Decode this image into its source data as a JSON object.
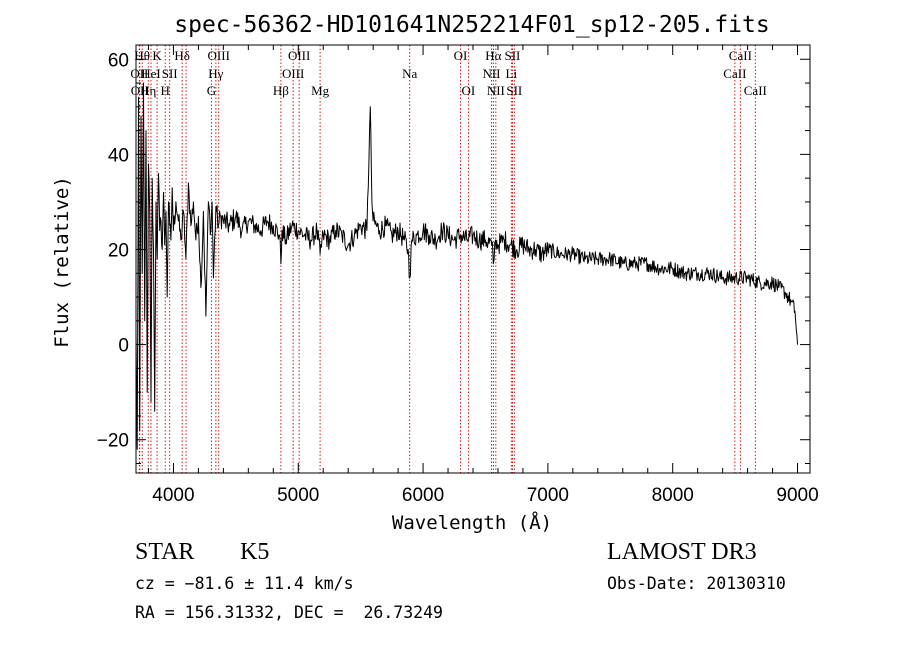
{
  "chart_data": {
    "type": "line",
    "title": "spec-56362-HD101641N252214F01_sp12-205.fits",
    "xlabel": "Wavelength (Å)",
    "ylabel": "Flux (relative)",
    "xlim": [
      3700,
      9100
    ],
    "ylim": [
      -27,
      63
    ],
    "xticks": [
      4000,
      5000,
      6000,
      7000,
      8000,
      9000
    ],
    "yticks": [
      -20,
      0,
      20,
      40,
      60
    ],
    "xtick_labels": [
      "4000",
      "5000",
      "6000",
      "7000",
      "8000",
      "9000"
    ],
    "ytick_labels": [
      "−20",
      "0",
      "20",
      "40",
      "60"
    ],
    "series": [
      {
        "name": "flux",
        "color": "#000000",
        "x": [
          3700,
          3710,
          3720,
          3730,
          3740,
          3750,
          3760,
          3770,
          3780,
          3790,
          3800,
          3810,
          3820,
          3830,
          3840,
          3850,
          3860,
          3870,
          3880,
          3890,
          3900,
          3910,
          3920,
          3930,
          3940,
          3950,
          3960,
          3970,
          3980,
          3990,
          4000,
          4020,
          4040,
          4060,
          4080,
          4100,
          4120,
          4140,
          4160,
          4180,
          4200,
          4220,
          4240,
          4260,
          4280,
          4300,
          4310,
          4320,
          4340,
          4360,
          4380,
          4400,
          4450,
          4500,
          4550,
          4600,
          4650,
          4700,
          4750,
          4800,
          4850,
          4861,
          4870,
          4900,
          4950,
          5000,
          5050,
          5100,
          5150,
          5175,
          5200,
          5250,
          5300,
          5350,
          5400,
          5450,
          5500,
          5550,
          5577,
          5590,
          5600,
          5650,
          5700,
          5750,
          5800,
          5850,
          5880,
          5893,
          5910,
          5950,
          6000,
          6050,
          6100,
          6150,
          6200,
          6250,
          6300,
          6350,
          6400,
          6450,
          6500,
          6550,
          6563,
          6580,
          6600,
          6650,
          6700,
          6750,
          6800,
          6850,
          6900,
          6950,
          7000,
          7100,
          7200,
          7300,
          7400,
          7500,
          7600,
          7700,
          7800,
          7900,
          8000,
          8100,
          8200,
          8300,
          8400,
          8500,
          8600,
          8700,
          8800,
          8850,
          8900,
          8950,
          8980,
          9000
        ],
        "y": [
          2,
          -22,
          52,
          -18,
          48,
          15,
          55,
          5,
          45,
          -10,
          38,
          28,
          -12,
          35,
          20,
          -14,
          30,
          18,
          36,
          24,
          26,
          20,
          32,
          21,
          28,
          10,
          30,
          25,
          22,
          33,
          24,
          30,
          26,
          22,
          28,
          18,
          34,
          25,
          30,
          22,
          27,
          12,
          28,
          6,
          30,
          24,
          30,
          14,
          29,
          25,
          27,
          26,
          25,
          27,
          24,
          26,
          25,
          24,
          26,
          25,
          23,
          17,
          24,
          22,
          25,
          24,
          23,
          22,
          24,
          19,
          23,
          22,
          24,
          23,
          21,
          23,
          25,
          24,
          50,
          30,
          26,
          24,
          25,
          23,
          24,
          22,
          20,
          14,
          22,
          23,
          24,
          23,
          22,
          24,
          23,
          22,
          23,
          22,
          23,
          22,
          22,
          21,
          17,
          22,
          21,
          22,
          21,
          20,
          21,
          20,
          20,
          19,
          20,
          19,
          19,
          18,
          18,
          18,
          17,
          17,
          17,
          16,
          16,
          15,
          15,
          15,
          14,
          14,
          14,
          13,
          13,
          12,
          11,
          9,
          7,
          0
        ]
      }
    ],
    "line_markers": [
      {
        "wavelength": 3727,
        "label": "OII",
        "row": 1
      },
      {
        "wavelength": 3730,
        "label": "OII",
        "row": 2
      },
      {
        "wavelength": 3750,
        "label": "Hθ",
        "row": 0
      },
      {
        "wavelength": 3798,
        "label": "Hη",
        "row": 2
      },
      {
        "wavelength": 3820,
        "label": "HeI",
        "row": 1
      },
      {
        "wavelength": 3869,
        "label": "K",
        "row": 0
      },
      {
        "wavelength": 3934,
        "label": "H",
        "row": 2
      },
      {
        "wavelength": 3970,
        "label": "SII",
        "row": 1
      },
      {
        "wavelength": 4070,
        "label": "Hδ",
        "row": 0
      },
      {
        "wavelength": 4101,
        "label": "",
        "row": 0
      },
      {
        "wavelength": 4304,
        "label": "G",
        "row": 2
      },
      {
        "wavelength": 4340,
        "label": "Hγ",
        "row": 1
      },
      {
        "wavelength": 4363,
        "label": "OIII",
        "row": 0
      },
      {
        "wavelength": 4861,
        "label": "Hβ",
        "row": 2
      },
      {
        "wavelength": 4959,
        "label": "OIII",
        "row": 1
      },
      {
        "wavelength": 5007,
        "label": "OIII",
        "row": 0
      },
      {
        "wavelength": 5175,
        "label": "Mg",
        "row": 2
      },
      {
        "wavelength": 5893,
        "label": "Na",
        "row": 1
      },
      {
        "wavelength": 6300,
        "label": "OI",
        "row": 0
      },
      {
        "wavelength": 6363,
        "label": "OI",
        "row": 2
      },
      {
        "wavelength": 6548,
        "label": "NII",
        "row": 1
      },
      {
        "wavelength": 6563,
        "label": "Hα",
        "row": 0
      },
      {
        "wavelength": 6583,
        "label": "NII",
        "row": 2
      },
      {
        "wavelength": 6707,
        "label": "Li",
        "row": 1
      },
      {
        "wavelength": 6716,
        "label": "SII",
        "row": 0
      },
      {
        "wavelength": 6731,
        "label": "SII",
        "row": 2
      },
      {
        "wavelength": 8498,
        "label": "CaII",
        "row": 1
      },
      {
        "wavelength": 8542,
        "label": "CaII",
        "row": 0
      },
      {
        "wavelength": 8662,
        "label": "CaII",
        "row": 2
      }
    ],
    "marker_color": "#cc0000"
  },
  "info": {
    "class": "STAR",
    "subclass": "K5",
    "survey": "LAMOST DR3",
    "cz": "cz = −81.6 ± 11.4 km/s",
    "obs_date": "Obs-Date: 20130310",
    "coords": "RA = 156.31332, DEC =  26.73249"
  }
}
